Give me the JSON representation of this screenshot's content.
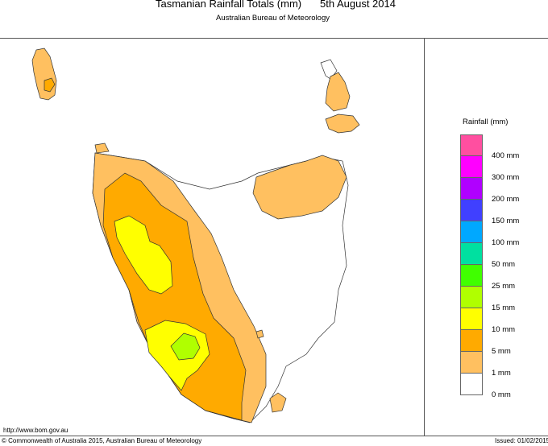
{
  "header": {
    "title": "Tasmanian Rainfall Totals (mm)",
    "date": "5th August 2014",
    "subtitle": "Australian Bureau of Meteorology"
  },
  "legend": {
    "title": "Rainfall (mm)",
    "colors": [
      "#ff4fa0",
      "#ff00ff",
      "#b000ff",
      "#4040ff",
      "#00a8ff",
      "#00e0a0",
      "#40ff00",
      "#b0ff00",
      "#ffff00",
      "#ffaa00",
      "#ffc060",
      "#ffffff"
    ],
    "labels": [
      "400 mm",
      "300 mm",
      "200 mm",
      "150 mm",
      "100 mm",
      "50 mm",
      "25 mm",
      "15 mm",
      "10 mm",
      "5 mm",
      "1 mm",
      "0 mm"
    ]
  },
  "footer": {
    "url": "http://www.bom.gov.au",
    "copyright": "© Commonwealth of Australia 2015, Australian Bureau of Meteorology",
    "issued": "Issued: 01/02/2015"
  }
}
